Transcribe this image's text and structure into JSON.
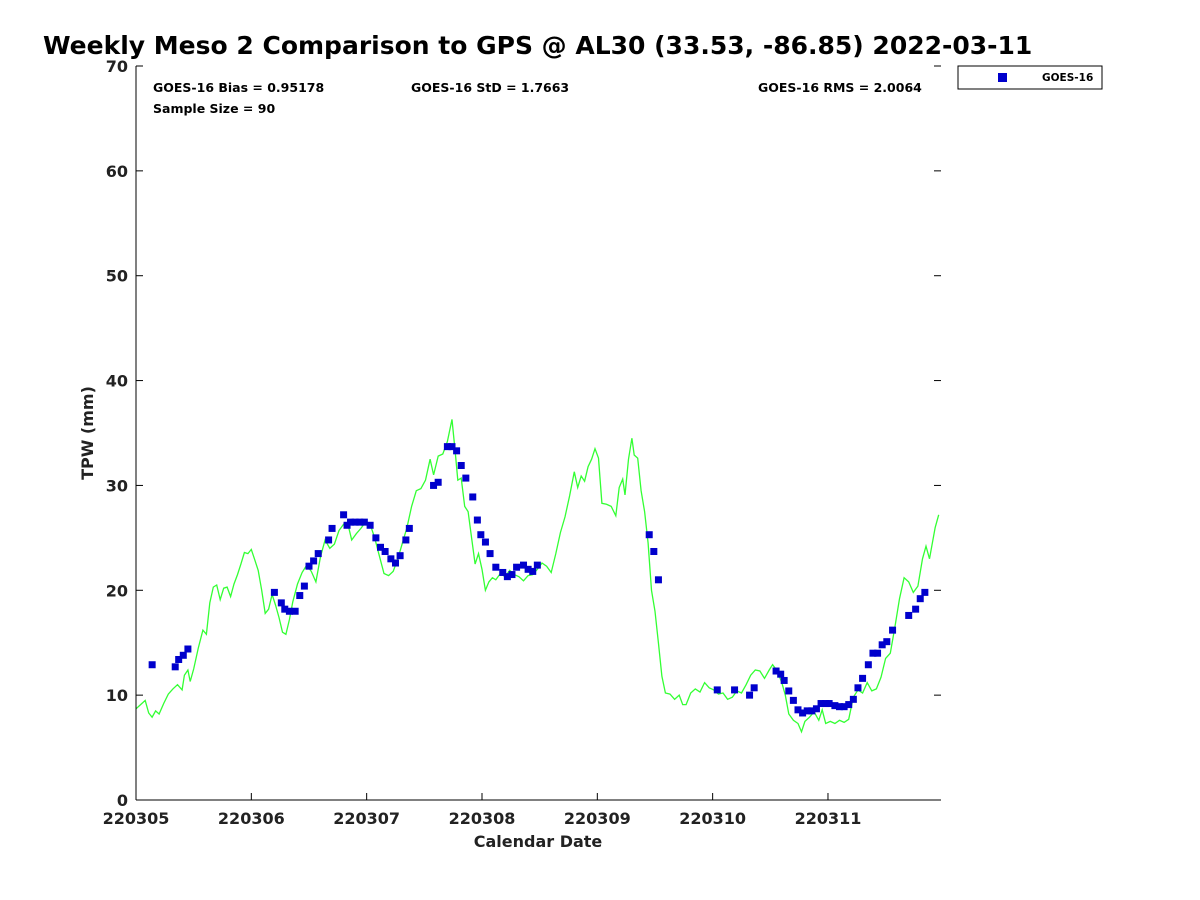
{
  "chart_data": {
    "type": "scatter",
    "title": "Weekly Meso 2 Comparison to GPS @ AL30 (33.53, -86.85) 2022-03-11",
    "xlabel": "Calendar Date",
    "ylabel": "TPW (mm)",
    "ylim": [
      0,
      70
    ],
    "yticks": [
      "0",
      "10",
      "20",
      "30",
      "40",
      "50",
      "60",
      "70"
    ],
    "xlim": [
      0,
      6.98
    ],
    "xticks": [
      "220305",
      "220306",
      "220307",
      "220308",
      "220309",
      "220310",
      "220311"
    ],
    "grid": false,
    "legend": {
      "placement": "top-right-outside",
      "entries": [
        "GOES-16"
      ]
    },
    "stats": {
      "bias": "GOES-16 Bias = 0.95178",
      "std": "GOES-16 StD = 1.7663",
      "rms": "GOES-16 RMS = 2.0064",
      "sample": "Sample Size = 90"
    },
    "colors": {
      "goes": "#0000cc",
      "gps": "#33ff33"
    },
    "series": [
      {
        "name": "GOES-16",
        "marker": "square",
        "color": "#0000cc",
        "points": [
          [
            0.14,
            12.9
          ],
          [
            0.34,
            12.7
          ],
          [
            0.37,
            13.4
          ],
          [
            0.41,
            13.8
          ],
          [
            0.45,
            14.4
          ],
          [
            1.2,
            19.8
          ],
          [
            1.26,
            18.8
          ],
          [
            1.29,
            18.2
          ],
          [
            1.33,
            18.0
          ],
          [
            1.38,
            18.0
          ],
          [
            1.42,
            19.5
          ],
          [
            1.46,
            20.4
          ],
          [
            1.5,
            22.3
          ],
          [
            1.54,
            22.8
          ],
          [
            1.58,
            23.5
          ],
          [
            1.67,
            24.8
          ],
          [
            1.7,
            25.9
          ],
          [
            1.8,
            27.2
          ],
          [
            1.83,
            26.2
          ],
          [
            1.86,
            26.5
          ],
          [
            1.9,
            26.5
          ],
          [
            1.94,
            26.5
          ],
          [
            1.98,
            26.5
          ],
          [
            2.03,
            26.2
          ],
          [
            2.08,
            25.0
          ],
          [
            2.12,
            24.1
          ],
          [
            2.16,
            23.7
          ],
          [
            2.21,
            23.0
          ],
          [
            2.25,
            22.6
          ],
          [
            2.29,
            23.3
          ],
          [
            2.34,
            24.8
          ],
          [
            2.37,
            25.9
          ],
          [
            2.58,
            30.0
          ],
          [
            2.62,
            30.3
          ],
          [
            2.7,
            33.7
          ],
          [
            2.74,
            33.7
          ],
          [
            2.78,
            33.3
          ],
          [
            2.82,
            31.9
          ],
          [
            2.86,
            30.7
          ],
          [
            2.92,
            28.9
          ],
          [
            2.96,
            26.7
          ],
          [
            2.99,
            25.3
          ],
          [
            3.03,
            24.6
          ],
          [
            3.07,
            23.5
          ],
          [
            3.12,
            22.2
          ],
          [
            3.18,
            21.7
          ],
          [
            3.22,
            21.3
          ],
          [
            3.26,
            21.5
          ],
          [
            3.3,
            22.2
          ],
          [
            3.36,
            22.4
          ],
          [
            3.4,
            22.0
          ],
          [
            3.44,
            21.8
          ],
          [
            3.48,
            22.4
          ],
          [
            4.45,
            25.3
          ],
          [
            4.49,
            23.7
          ],
          [
            4.53,
            21.0
          ],
          [
            5.04,
            10.5
          ],
          [
            5.19,
            10.5
          ],
          [
            5.32,
            10.0
          ],
          [
            5.36,
            10.7
          ],
          [
            5.55,
            12.3
          ],
          [
            5.59,
            12.0
          ],
          [
            5.62,
            11.4
          ],
          [
            5.66,
            10.4
          ],
          [
            5.7,
            9.5
          ],
          [
            5.74,
            8.6
          ],
          [
            5.78,
            8.3
          ],
          [
            5.82,
            8.5
          ],
          [
            5.86,
            8.5
          ],
          [
            5.9,
            8.7
          ],
          [
            5.94,
            9.2
          ],
          [
            5.98,
            9.2
          ],
          [
            6.01,
            9.2
          ],
          [
            6.06,
            9.0
          ],
          [
            6.1,
            8.9
          ],
          [
            6.14,
            8.9
          ],
          [
            6.18,
            9.1
          ],
          [
            6.22,
            9.6
          ],
          [
            6.26,
            10.7
          ],
          [
            6.3,
            11.6
          ],
          [
            6.35,
            12.9
          ],
          [
            6.39,
            14.0
          ],
          [
            6.43,
            14.0
          ],
          [
            6.47,
            14.8
          ],
          [
            6.51,
            15.1
          ],
          [
            6.56,
            16.2
          ],
          [
            6.7,
            17.6
          ],
          [
            6.76,
            18.2
          ],
          [
            6.8,
            19.2
          ],
          [
            6.84,
            19.8
          ]
        ]
      },
      {
        "name": "",
        "type": "line",
        "color": "#33ff33",
        "points": [
          [
            0.0,
            8.7
          ],
          [
            0.04,
            9.1
          ],
          [
            0.08,
            9.5
          ],
          [
            0.11,
            8.3
          ],
          [
            0.14,
            7.9
          ],
          [
            0.17,
            8.5
          ],
          [
            0.2,
            8.2
          ],
          [
            0.24,
            9.2
          ],
          [
            0.28,
            10.1
          ],
          [
            0.32,
            10.6
          ],
          [
            0.36,
            11.0
          ],
          [
            0.4,
            10.5
          ],
          [
            0.42,
            11.9
          ],
          [
            0.45,
            12.4
          ],
          [
            0.47,
            11.3
          ],
          [
            0.5,
            12.5
          ],
          [
            0.54,
            14.5
          ],
          [
            0.58,
            16.2
          ],
          [
            0.61,
            15.8
          ],
          [
            0.64,
            18.8
          ],
          [
            0.67,
            20.3
          ],
          [
            0.7,
            20.5
          ],
          [
            0.73,
            19.1
          ],
          [
            0.76,
            20.2
          ],
          [
            0.79,
            20.3
          ],
          [
            0.82,
            19.4
          ],
          [
            0.85,
            20.6
          ],
          [
            0.88,
            21.5
          ],
          [
            0.91,
            22.5
          ],
          [
            0.94,
            23.6
          ],
          [
            0.97,
            23.5
          ],
          [
            1.0,
            23.9
          ],
          [
            1.03,
            22.9
          ],
          [
            1.06,
            21.9
          ],
          [
            1.09,
            20.0
          ],
          [
            1.12,
            17.8
          ],
          [
            1.15,
            18.2
          ],
          [
            1.18,
            19.6
          ],
          [
            1.21,
            18.6
          ],
          [
            1.24,
            17.4
          ],
          [
            1.27,
            16.0
          ],
          [
            1.3,
            15.8
          ],
          [
            1.33,
            17.2
          ],
          [
            1.36,
            18.9
          ],
          [
            1.4,
            20.6
          ],
          [
            1.44,
            21.7
          ],
          [
            1.48,
            22.4
          ],
          [
            1.52,
            21.8
          ],
          [
            1.56,
            20.8
          ],
          [
            1.6,
            23.2
          ],
          [
            1.64,
            24.8
          ],
          [
            1.68,
            24.0
          ],
          [
            1.72,
            24.4
          ],
          [
            1.76,
            25.7
          ],
          [
            1.8,
            26.3
          ],
          [
            1.84,
            26.2
          ],
          [
            1.87,
            24.8
          ],
          [
            1.91,
            25.4
          ],
          [
            1.95,
            25.9
          ],
          [
            1.99,
            26.5
          ],
          [
            2.03,
            26.3
          ],
          [
            2.07,
            25.0
          ],
          [
            2.11,
            23.3
          ],
          [
            2.15,
            21.6
          ],
          [
            2.19,
            21.4
          ],
          [
            2.23,
            21.8
          ],
          [
            2.27,
            23.0
          ],
          [
            2.31,
            24.5
          ],
          [
            2.35,
            26.0
          ],
          [
            2.39,
            28.0
          ],
          [
            2.43,
            29.5
          ],
          [
            2.47,
            29.7
          ],
          [
            2.51,
            30.5
          ],
          [
            2.55,
            32.5
          ],
          [
            2.58,
            31.0
          ],
          [
            2.62,
            32.8
          ],
          [
            2.66,
            33.0
          ],
          [
            2.7,
            34.2
          ],
          [
            2.74,
            36.3
          ],
          [
            2.77,
            32.9
          ],
          [
            2.79,
            30.5
          ],
          [
            2.82,
            30.7
          ],
          [
            2.85,
            28.0
          ],
          [
            2.88,
            27.5
          ],
          [
            2.91,
            25.0
          ],
          [
            2.94,
            22.5
          ],
          [
            2.97,
            23.5
          ],
          [
            3.0,
            22.0
          ],
          [
            3.03,
            20.0
          ],
          [
            3.06,
            20.8
          ],
          [
            3.09,
            21.2
          ],
          [
            3.12,
            21.0
          ],
          [
            3.16,
            21.6
          ],
          [
            3.2,
            21.3
          ],
          [
            3.24,
            21.9
          ],
          [
            3.28,
            21.5
          ],
          [
            3.32,
            21.3
          ],
          [
            3.36,
            20.9
          ],
          [
            3.4,
            21.4
          ],
          [
            3.44,
            21.5
          ],
          [
            3.48,
            22.0
          ],
          [
            3.52,
            22.6
          ],
          [
            3.56,
            22.3
          ],
          [
            3.6,
            21.7
          ],
          [
            3.64,
            23.5
          ],
          [
            3.68,
            25.5
          ],
          [
            3.72,
            27.0
          ],
          [
            3.76,
            29.0
          ],
          [
            3.8,
            31.3
          ],
          [
            3.83,
            29.8
          ],
          [
            3.86,
            30.9
          ],
          [
            3.89,
            30.4
          ],
          [
            3.92,
            31.8
          ],
          [
            3.95,
            32.5
          ],
          [
            3.98,
            33.5
          ],
          [
            4.01,
            32.6
          ],
          [
            4.04,
            28.3
          ],
          [
            4.08,
            28.2
          ],
          [
            4.12,
            28.0
          ],
          [
            4.16,
            27.1
          ],
          [
            4.19,
            29.8
          ],
          [
            4.22,
            30.6
          ],
          [
            4.24,
            29.1
          ],
          [
            4.27,
            32.5
          ],
          [
            4.3,
            34.5
          ],
          [
            4.32,
            32.9
          ],
          [
            4.35,
            32.6
          ],
          [
            4.38,
            29.5
          ],
          [
            4.41,
            27.5
          ],
          [
            4.44,
            24.5
          ],
          [
            4.47,
            20.0
          ],
          [
            4.5,
            18.0
          ],
          [
            4.53,
            15.0
          ],
          [
            4.56,
            11.8
          ],
          [
            4.59,
            10.2
          ],
          [
            4.63,
            10.1
          ],
          [
            4.67,
            9.6
          ],
          [
            4.71,
            10.0
          ],
          [
            4.74,
            9.1
          ],
          [
            4.77,
            9.1
          ],
          [
            4.81,
            10.2
          ],
          [
            4.85,
            10.6
          ],
          [
            4.89,
            10.3
          ],
          [
            4.93,
            11.2
          ],
          [
            4.97,
            10.7
          ],
          [
            5.01,
            10.5
          ],
          [
            5.05,
            10.1
          ],
          [
            5.09,
            10.2
          ],
          [
            5.13,
            9.6
          ],
          [
            5.17,
            9.8
          ],
          [
            5.21,
            10.4
          ],
          [
            5.25,
            10.2
          ],
          [
            5.29,
            11.0
          ],
          [
            5.33,
            11.9
          ],
          [
            5.37,
            12.4
          ],
          [
            5.41,
            12.3
          ],
          [
            5.45,
            11.6
          ],
          [
            5.49,
            12.4
          ],
          [
            5.52,
            12.9
          ],
          [
            5.56,
            12.3
          ],
          [
            5.6,
            11.2
          ],
          [
            5.63,
            10.0
          ],
          [
            5.66,
            8.2
          ],
          [
            5.7,
            7.6
          ],
          [
            5.74,
            7.3
          ],
          [
            5.77,
            6.5
          ],
          [
            5.8,
            7.5
          ],
          [
            5.84,
            7.9
          ],
          [
            5.88,
            8.4
          ],
          [
            5.92,
            7.6
          ],
          [
            5.95,
            8.6
          ],
          [
            5.98,
            7.3
          ],
          [
            6.02,
            7.5
          ],
          [
            6.06,
            7.3
          ],
          [
            6.1,
            7.6
          ],
          [
            6.14,
            7.4
          ],
          [
            6.18,
            7.7
          ],
          [
            6.22,
            9.8
          ],
          [
            6.26,
            10.5
          ],
          [
            6.3,
            10.2
          ],
          [
            6.34,
            11.2
          ],
          [
            6.38,
            10.4
          ],
          [
            6.42,
            10.6
          ],
          [
            6.46,
            11.7
          ],
          [
            6.5,
            13.5
          ],
          [
            6.54,
            14.0
          ],
          [
            6.58,
            16.5
          ],
          [
            6.62,
            19.2
          ],
          [
            6.66,
            21.2
          ],
          [
            6.7,
            20.8
          ],
          [
            6.74,
            19.8
          ],
          [
            6.78,
            20.4
          ],
          [
            6.82,
            23.0
          ],
          [
            6.85,
            24.2
          ],
          [
            6.88,
            23.0
          ],
          [
            6.91,
            24.8
          ],
          [
            6.93,
            26.0
          ],
          [
            6.96,
            27.2
          ]
        ]
      }
    ]
  }
}
